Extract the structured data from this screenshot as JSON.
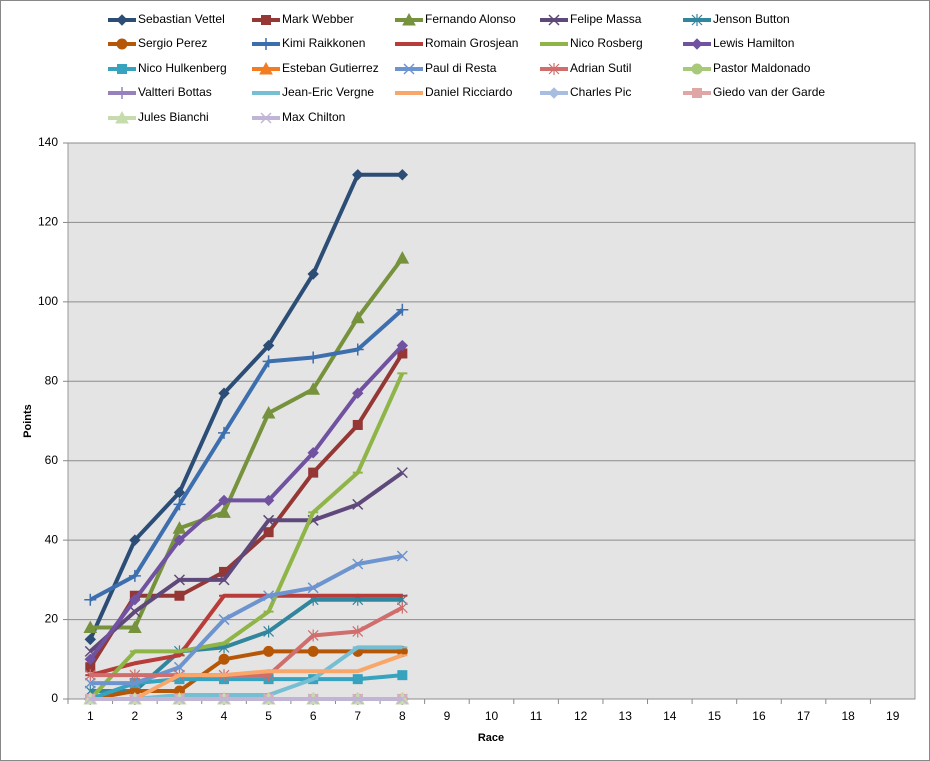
{
  "chart_data": {
    "type": "line",
    "x_label": "Race",
    "y_label": "Points",
    "categories": [
      "1",
      "2",
      "3",
      "4",
      "5",
      "6",
      "7",
      "8",
      "9",
      "10",
      "11",
      "12",
      "13",
      "14",
      "15",
      "16",
      "17",
      "18",
      "19"
    ],
    "ylim": [
      0,
      140
    ],
    "yticks": [
      0,
      20,
      40,
      60,
      80,
      100,
      120,
      140
    ],
    "grid": true,
    "legend": "top",
    "series": [
      {
        "name": "Sebastian Vettel",
        "color": "#2c4d75",
        "marker": "diamond",
        "values": [
          15,
          40,
          52,
          77,
          89,
          107,
          132,
          132,
          null,
          null,
          null,
          null,
          null,
          null,
          null,
          null,
          null,
          null,
          null
        ]
      },
      {
        "name": "Mark Webber",
        "color": "#953735",
        "marker": "square",
        "values": [
          8,
          26,
          26,
          32,
          42,
          57,
          69,
          87,
          null,
          null,
          null,
          null,
          null,
          null,
          null,
          null,
          null,
          null,
          null
        ]
      },
      {
        "name": "Fernando Alonso",
        "color": "#76923c",
        "marker": "triangle",
        "values": [
          18,
          18,
          43,
          47,
          72,
          78,
          96,
          111,
          null,
          null,
          null,
          null,
          null,
          null,
          null,
          null,
          null,
          null,
          null
        ]
      },
      {
        "name": "Felipe Massa",
        "color": "#5f497a",
        "marker": "x",
        "values": [
          12,
          22,
          30,
          30,
          45,
          45,
          49,
          57,
          null,
          null,
          null,
          null,
          null,
          null,
          null,
          null,
          null,
          null,
          null
        ]
      },
      {
        "name": "Jenson Button",
        "color": "#31859c",
        "marker": "star",
        "values": [
          2,
          2,
          12,
          13,
          17,
          25,
          25,
          25,
          null,
          null,
          null,
          null,
          null,
          null,
          null,
          null,
          null,
          null,
          null
        ]
      },
      {
        "name": "Sergio Perez",
        "color": "#b65708",
        "marker": "circle",
        "values": [
          0,
          2,
          2,
          10,
          12,
          12,
          12,
          12,
          null,
          null,
          null,
          null,
          null,
          null,
          null,
          null,
          null,
          null,
          null
        ]
      },
      {
        "name": "Kimi Raikkonen",
        "color": "#3d6fae",
        "marker": "plus",
        "values": [
          25,
          31,
          49,
          67,
          85,
          86,
          88,
          98,
          null,
          null,
          null,
          null,
          null,
          null,
          null,
          null,
          null,
          null,
          null
        ]
      },
      {
        "name": "Romain Grosjean",
        "color": "#b83c39",
        "marker": "dash",
        "values": [
          6,
          9,
          11,
          26,
          26,
          26,
          26,
          26,
          null,
          null,
          null,
          null,
          null,
          null,
          null,
          null,
          null,
          null,
          null
        ]
      },
      {
        "name": "Nico Rosberg",
        "color": "#8fb447",
        "marker": "dash",
        "values": [
          0,
          12,
          12,
          14,
          22,
          47,
          57,
          82,
          null,
          null,
          null,
          null,
          null,
          null,
          null,
          null,
          null,
          null,
          null
        ]
      },
      {
        "name": "Lewis Hamilton",
        "color": "#7152a0",
        "marker": "diamond",
        "values": [
          10,
          25,
          40,
          50,
          50,
          62,
          77,
          89,
          null,
          null,
          null,
          null,
          null,
          null,
          null,
          null,
          null,
          null,
          null
        ]
      },
      {
        "name": "Nico Hulkenberg",
        "color": "#37a3be",
        "marker": "square",
        "values": [
          0,
          4,
          5,
          5,
          5,
          5,
          5,
          6,
          null,
          null,
          null,
          null,
          null,
          null,
          null,
          null,
          null,
          null,
          null
        ]
      },
      {
        "name": "Esteban Gutierrez",
        "color": "#f27c22",
        "marker": "triangle",
        "values": [
          0,
          0,
          0,
          0,
          0,
          0,
          0,
          0,
          null,
          null,
          null,
          null,
          null,
          null,
          null,
          null,
          null,
          null,
          null
        ]
      },
      {
        "name": "Paul di Resta",
        "color": "#6d94cf",
        "marker": "x",
        "values": [
          4,
          4,
          8,
          20,
          26,
          28,
          34,
          36,
          null,
          null,
          null,
          null,
          null,
          null,
          null,
          null,
          null,
          null,
          null
        ]
      },
      {
        "name": "Adrian Sutil",
        "color": "#cf6e6c",
        "marker": "star",
        "values": [
          6,
          6,
          6,
          6,
          6,
          16,
          17,
          23,
          null,
          null,
          null,
          null,
          null,
          null,
          null,
          null,
          null,
          null,
          null
        ]
      },
      {
        "name": "Pastor Maldonado",
        "color": "#a9c97a",
        "marker": "circle",
        "values": [
          0,
          0,
          0,
          0,
          0,
          0,
          0,
          0,
          null,
          null,
          null,
          null,
          null,
          null,
          null,
          null,
          null,
          null,
          null
        ]
      },
      {
        "name": "Valtteri Bottas",
        "color": "#9781bc",
        "marker": "plus",
        "values": [
          0,
          0,
          0,
          0,
          0,
          0,
          0,
          0,
          null,
          null,
          null,
          null,
          null,
          null,
          null,
          null,
          null,
          null,
          null
        ]
      },
      {
        "name": "Jean-Eric Vergne",
        "color": "#76bed2",
        "marker": "dash",
        "values": [
          0,
          0,
          1,
          1,
          1,
          5,
          13,
          13,
          null,
          null,
          null,
          null,
          null,
          null,
          null,
          null,
          null,
          null,
          null
        ]
      },
      {
        "name": "Daniel Ricciardo",
        "color": "#f8a66a",
        "marker": "dash",
        "values": [
          0,
          0,
          6,
          6,
          7,
          7,
          7,
          11,
          null,
          null,
          null,
          null,
          null,
          null,
          null,
          null,
          null,
          null,
          null
        ]
      },
      {
        "name": "Charles Pic",
        "color": "#a8bde2",
        "marker": "diamond",
        "values": [
          0,
          0,
          0,
          0,
          0,
          0,
          0,
          0,
          null,
          null,
          null,
          null,
          null,
          null,
          null,
          null,
          null,
          null,
          null
        ]
      },
      {
        "name": "Giedo van der Garde",
        "color": "#e0a6a5",
        "marker": "square",
        "values": [
          0,
          0,
          0,
          0,
          0,
          0,
          0,
          0,
          null,
          null,
          null,
          null,
          null,
          null,
          null,
          null,
          null,
          null,
          null
        ]
      },
      {
        "name": "Jules Bianchi",
        "color": "#c6dcad",
        "marker": "triangle",
        "values": [
          0,
          0,
          0,
          0,
          0,
          0,
          0,
          0,
          null,
          null,
          null,
          null,
          null,
          null,
          null,
          null,
          null,
          null,
          null
        ]
      },
      {
        "name": "Max Chilton",
        "color": "#c1b5d6",
        "marker": "x",
        "values": [
          0,
          0,
          0,
          0,
          0,
          0,
          0,
          0,
          null,
          null,
          null,
          null,
          null,
          null,
          null,
          null,
          null,
          null,
          null
        ]
      }
    ]
  }
}
